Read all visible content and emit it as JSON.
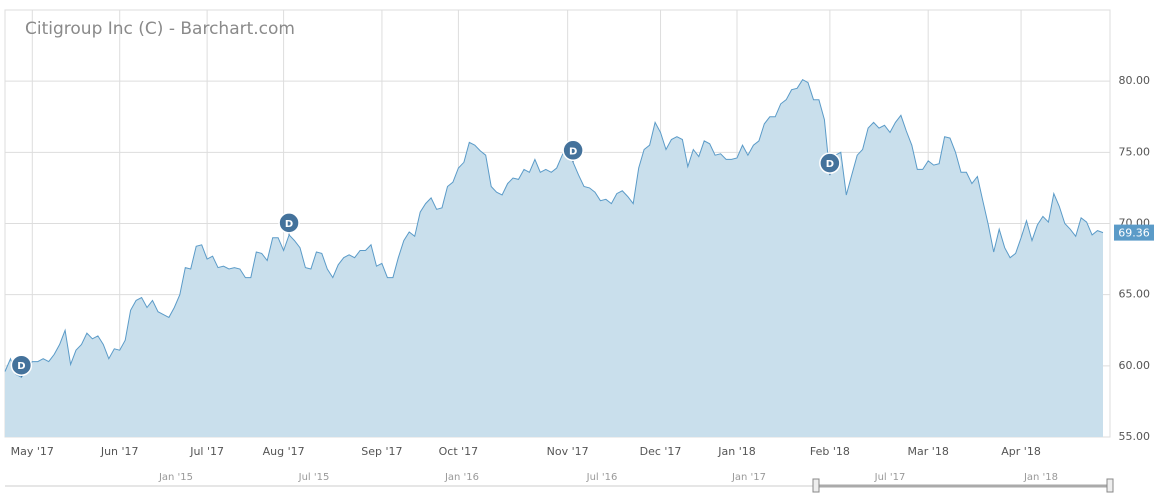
{
  "chart_data": {
    "type": "area",
    "title": "Citigroup Inc (C) - Barchart.com",
    "color": "#5b9bc8",
    "fill": "#c9dfec",
    "grid": true,
    "values": [
      59.6,
      60.5,
      59.4,
      59.2,
      59.7,
      60.3,
      60.3,
      60.5,
      60.3,
      60.8,
      61.5,
      62.5,
      60.1,
      61.1,
      61.5,
      62.3,
      61.9,
      62.1,
      61.5,
      60.5,
      61.2,
      61.1,
      61.8,
      63.9,
      64.6,
      64.8,
      64.1,
      64.6,
      63.8,
      63.6,
      63.4,
      64.1,
      65.0,
      66.9,
      66.8,
      68.4,
      68.5,
      67.5,
      67.7,
      66.9,
      67.0,
      66.8,
      66.9,
      66.8,
      66.2,
      66.2,
      68.0,
      67.9,
      67.4,
      69.0,
      69.0,
      68.1,
      69.2,
      68.8,
      68.3,
      66.9,
      66.8,
      68.0,
      67.9,
      66.8,
      66.2,
      67.1,
      67.6,
      67.8,
      67.6,
      68.1,
      68.1,
      68.5,
      67.0,
      67.2,
      66.2,
      66.2,
      67.6,
      68.8,
      69.4,
      69.1,
      70.8,
      71.4,
      71.8,
      71.0,
      71.1,
      72.6,
      72.9,
      73.9,
      74.3,
      75.7,
      75.5,
      75.1,
      74.8,
      72.6,
      72.2,
      72.0,
      72.8,
      73.2,
      73.1,
      73.8,
      73.6,
      74.5,
      73.6,
      73.8,
      73.6,
      73.9,
      74.8,
      75.5,
      74.3,
      73.4,
      72.6,
      72.5,
      72.2,
      71.6,
      71.7,
      71.4,
      72.1,
      72.3,
      71.9,
      71.4,
      73.9,
      75.2,
      75.5,
      77.1,
      76.4,
      75.2,
      75.9,
      76.1,
      75.9,
      74.0,
      75.2,
      74.7,
      75.8,
      75.6,
      74.8,
      74.9,
      74.5,
      74.5,
      74.6,
      75.5,
      74.8,
      75.5,
      75.8,
      77.0,
      77.5,
      77.5,
      78.4,
      78.7,
      79.4,
      79.5,
      80.1,
      79.9,
      78.7,
      78.7,
      77.3,
      73.4,
      74.8,
      75.0,
      72.0,
      73.4,
      74.8,
      75.2,
      76.7,
      77.1,
      76.7,
      76.9,
      76.4,
      77.1,
      77.6,
      76.5,
      75.5,
      73.8,
      73.8,
      74.4,
      74.1,
      74.2,
      76.1,
      76.0,
      75.0,
      73.6,
      73.6,
      72.8,
      73.3,
      71.6,
      69.9,
      68.0,
      69.6,
      68.3,
      67.6,
      67.9,
      69.0,
      70.2,
      68.8,
      69.9,
      70.5,
      70.1,
      72.1,
      71.2,
      70.0,
      69.6,
      69.1,
      70.4,
      70.1,
      69.2,
      69.5,
      69.36
    ],
    "xlim": [
      0,
      201
    ],
    "xticks": [
      {
        "value": 5,
        "label": "May '17"
      },
      {
        "value": 21,
        "label": "Jun '17"
      },
      {
        "value": 37,
        "label": "Jul '17"
      },
      {
        "value": 51,
        "label": "Aug '17"
      },
      {
        "value": 69,
        "label": "Sep '17"
      },
      {
        "value": 83,
        "label": "Oct '17"
      },
      {
        "value": 103,
        "label": "Nov '17"
      },
      {
        "value": 120,
        "label": "Dec '17"
      },
      {
        "value": 134,
        "label": "Jan '18"
      },
      {
        "value": 151,
        "label": "Feb '18"
      },
      {
        "value": 169,
        "label": "Mar '18"
      },
      {
        "value": 186,
        "label": "Apr '18"
      }
    ],
    "ylim": [
      55,
      85
    ],
    "yticks": [
      {
        "value": 55,
        "label": "55.00"
      },
      {
        "value": 60,
        "label": "60.00"
      },
      {
        "value": 65,
        "label": "65.00"
      },
      {
        "value": 70,
        "label": "70.00"
      },
      {
        "value": 75,
        "label": "75.00"
      },
      {
        "value": 80,
        "label": "80.00"
      }
    ],
    "markers": [
      {
        "x": 3,
        "label": "D"
      },
      {
        "x": 52,
        "label": "D"
      },
      {
        "x": 104,
        "label": "D"
      },
      {
        "x": 151,
        "label": "D"
      }
    ],
    "navigator_labels": [
      "Jan '15",
      "Jul '15",
      "Jan '16",
      "Jul '16",
      "Jan '17",
      "Jul '17",
      "Jan '18"
    ]
  }
}
